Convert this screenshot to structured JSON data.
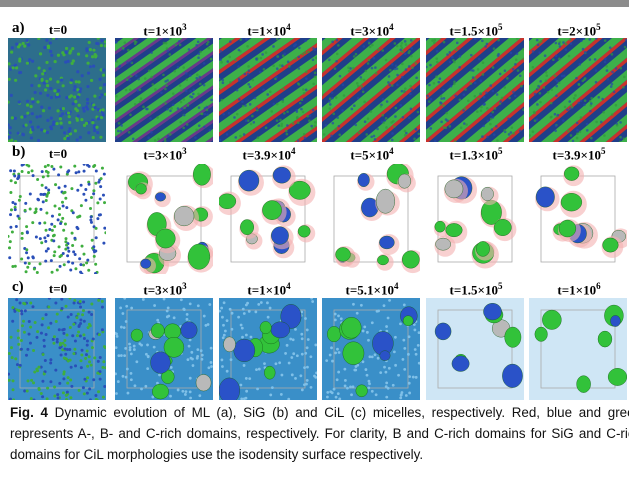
{
  "figure": {
    "rows": [
      {
        "label": "a)",
        "panels": [
          {
            "time": "t=0"
          },
          {
            "time": "t=1×10",
            "exp": "3"
          },
          {
            "time": "t=1×10",
            "exp": "4"
          },
          {
            "time": "t=3×10",
            "exp": "4"
          },
          {
            "time": "t=1.5×10",
            "exp": "5"
          },
          {
            "time": "t=2×10",
            "exp": "5"
          }
        ]
      },
      {
        "label": "b)",
        "panels": [
          {
            "time": "t=0"
          },
          {
            "time": "t=3×10",
            "exp": "3"
          },
          {
            "time": "t=3.9×10",
            "exp": "4"
          },
          {
            "time": "t=5×10",
            "exp": "4"
          },
          {
            "time": "t=1.3×10",
            "exp": "5"
          },
          {
            "time": "t=3.9×10",
            "exp": "5"
          }
        ]
      },
      {
        "label": "c)",
        "panels": [
          {
            "time": "t=0"
          },
          {
            "time": "t=3×10",
            "exp": "3"
          },
          {
            "time": "t=1×10",
            "exp": "4"
          },
          {
            "time": "t=5.1×10",
            "exp": "4"
          },
          {
            "time": "t=1.5×10",
            "exp": "5"
          },
          {
            "time": "t=1×10",
            "exp": "6"
          }
        ]
      }
    ]
  },
  "caption": {
    "label": "Fig. 4",
    "text": "Dynamic evolution of ML (a), SiG (b) and CiL (c) micelles, respectively. Red, blue and green represents A-, B- and C-rich domains, respectively. For clarity, B and C-rich domains for SiG and C-rich domains for CiL morphologies use the isodensity surface respectively."
  }
}
